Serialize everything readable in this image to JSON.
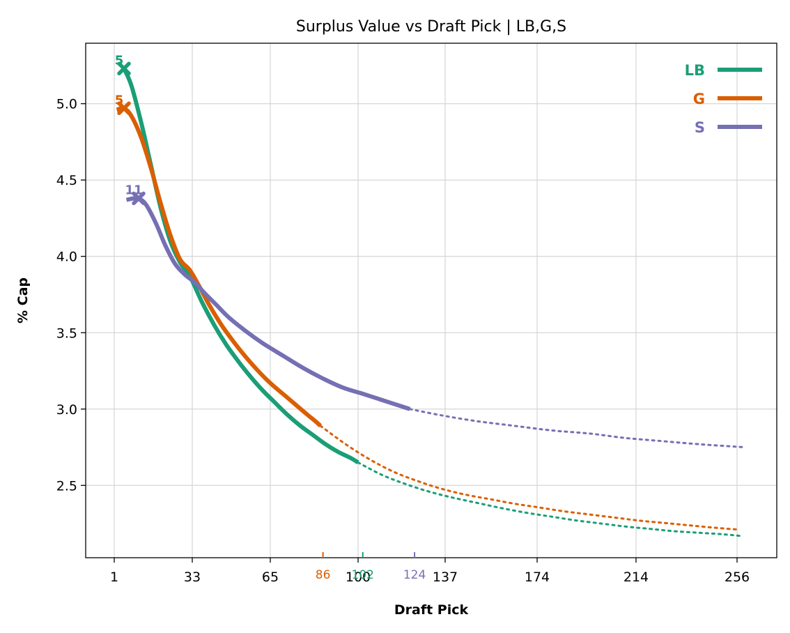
{
  "chart_data": {
    "type": "line",
    "title": "Surplus Value vs Draft Pick | LB,G,S",
    "xlabel": "Draft Pick",
    "ylabel": "% Cap",
    "xlim": [
      -11,
      274
    ],
    "ylim": [
      2.02,
      5.4
    ],
    "x_tick_values": [
      1,
      33,
      65,
      100,
      137,
      174,
      214,
      256
    ],
    "x_tick_labels": [
      "1",
      "33",
      "65",
      "100",
      "137",
      "174",
      "214",
      "256"
    ],
    "y_ticks": [
      "2.5",
      "3.0",
      "3.5",
      "4.0",
      "4.5",
      "5.0"
    ],
    "grid": true,
    "legend_placement": "top-right",
    "series": [
      {
        "name": "LB",
        "color": "#1b9e77",
        "solid": [
          [
            5,
            5.23
          ],
          [
            8,
            5.12
          ],
          [
            12,
            4.88
          ],
          [
            16,
            4.6
          ],
          [
            20,
            4.32
          ],
          [
            24,
            4.1
          ],
          [
            28,
            3.96
          ],
          [
            32,
            3.87
          ],
          [
            37,
            3.7
          ],
          [
            42,
            3.55
          ],
          [
            47,
            3.42
          ],
          [
            52,
            3.31
          ],
          [
            57,
            3.21
          ],
          [
            62,
            3.12
          ],
          [
            67,
            3.04
          ],
          [
            72,
            2.96
          ],
          [
            77,
            2.89
          ],
          [
            82,
            2.83
          ],
          [
            87,
            2.77
          ],
          [
            92,
            2.72
          ],
          [
            97,
            2.68
          ],
          [
            100,
            2.65
          ]
        ],
        "dotted": [
          [
            100,
            2.65
          ],
          [
            110,
            2.57
          ],
          [
            120,
            2.51
          ],
          [
            130,
            2.46
          ],
          [
            140,
            2.42
          ],
          [
            150,
            2.385
          ],
          [
            160,
            2.35
          ],
          [
            170,
            2.32
          ],
          [
            180,
            2.295
          ],
          [
            190,
            2.27
          ],
          [
            200,
            2.25
          ],
          [
            210,
            2.23
          ],
          [
            220,
            2.215
          ],
          [
            230,
            2.2
          ],
          [
            240,
            2.19
          ],
          [
            250,
            2.18
          ],
          [
            257,
            2.17
          ]
        ],
        "marker": [
          5,
          5.23
        ],
        "marker_label": "5",
        "pick_marker": 102
      },
      {
        "name": "G",
        "color": "#d95f02",
        "solid": [
          [
            2,
            4.96
          ],
          [
            5,
            4.97
          ],
          [
            8,
            4.92
          ],
          [
            12,
            4.78
          ],
          [
            16,
            4.58
          ],
          [
            20,
            4.35
          ],
          [
            24,
            4.14
          ],
          [
            28,
            3.98
          ],
          [
            32,
            3.91
          ],
          [
            36,
            3.8
          ],
          [
            40,
            3.68
          ],
          [
            45,
            3.55
          ],
          [
            50,
            3.44
          ],
          [
            55,
            3.34
          ],
          [
            60,
            3.25
          ],
          [
            65,
            3.17
          ],
          [
            70,
            3.1
          ],
          [
            75,
            3.03
          ],
          [
            80,
            2.96
          ],
          [
            83,
            2.92
          ],
          [
            85,
            2.89
          ]
        ],
        "dotted": [
          [
            85,
            2.89
          ],
          [
            95,
            2.77
          ],
          [
            105,
            2.67
          ],
          [
            115,
            2.59
          ],
          [
            125,
            2.53
          ],
          [
            135,
            2.48
          ],
          [
            145,
            2.44
          ],
          [
            155,
            2.41
          ],
          [
            165,
            2.38
          ],
          [
            175,
            2.355
          ],
          [
            185,
            2.33
          ],
          [
            195,
            2.31
          ],
          [
            205,
            2.29
          ],
          [
            215,
            2.27
          ],
          [
            225,
            2.255
          ],
          [
            235,
            2.24
          ],
          [
            245,
            2.225
          ],
          [
            257,
            2.21
          ]
        ],
        "marker": [
          5,
          4.97
        ],
        "marker_label": "5",
        "pick_marker": 86
      },
      {
        "name": "S",
        "color": "#7570b3",
        "solid": [
          [
            6,
            4.37
          ],
          [
            9,
            4.38
          ],
          [
            11,
            4.38
          ],
          [
            14,
            4.34
          ],
          [
            18,
            4.22
          ],
          [
            22,
            4.07
          ],
          [
            26,
            3.95
          ],
          [
            30,
            3.88
          ],
          [
            34,
            3.83
          ],
          [
            38,
            3.76
          ],
          [
            43,
            3.68
          ],
          [
            48,
            3.6
          ],
          [
            55,
            3.51
          ],
          [
            62,
            3.43
          ],
          [
            70,
            3.35
          ],
          [
            78,
            3.27
          ],
          [
            86,
            3.2
          ],
          [
            94,
            3.14
          ],
          [
            102,
            3.1
          ],
          [
            110,
            3.06
          ],
          [
            118,
            3.02
          ],
          [
            122,
            3.0
          ]
        ],
        "dotted": [
          [
            122,
            3.0
          ],
          [
            135,
            2.96
          ],
          [
            150,
            2.92
          ],
          [
            165,
            2.89
          ],
          [
            180,
            2.86
          ],
          [
            195,
            2.84
          ],
          [
            210,
            2.81
          ],
          [
            225,
            2.79
          ],
          [
            240,
            2.77
          ],
          [
            259,
            2.75
          ]
        ],
        "marker": [
          11,
          4.38
        ],
        "marker_label": "11",
        "pick_marker": 124
      }
    ]
  }
}
